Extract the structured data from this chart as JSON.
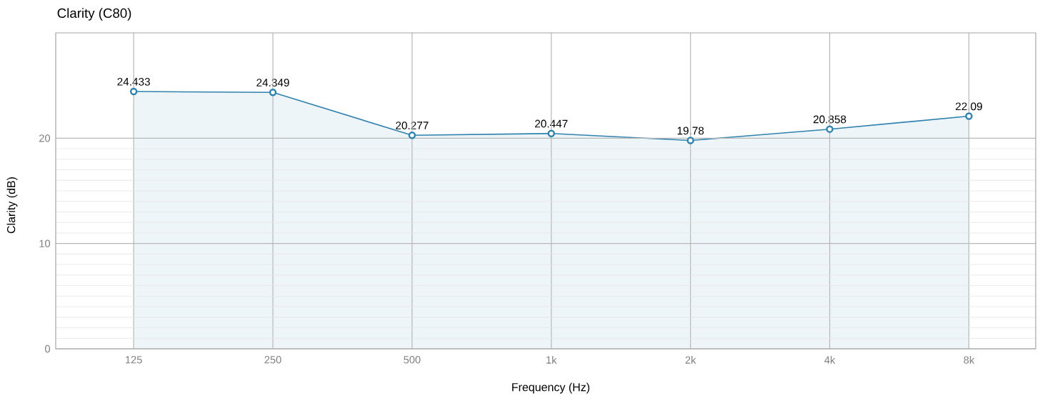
{
  "chart_data": {
    "type": "area",
    "title": "Clarity (C80)",
    "xlabel": "Frequency (Hz)",
    "ylabel": "Clarity (dB)",
    "categories": [
      "125",
      "250",
      "500",
      "1k",
      "2k",
      "4k",
      "8k"
    ],
    "values": [
      24.433,
      24.349,
      20.277,
      20.447,
      19.78,
      20.858,
      22.09
    ],
    "color": "#2f82ae",
    "ylim": [
      0,
      30
    ],
    "yticks": [
      0,
      10,
      20
    ],
    "grid": true,
    "marker": "circle",
    "data_labels": true
  }
}
